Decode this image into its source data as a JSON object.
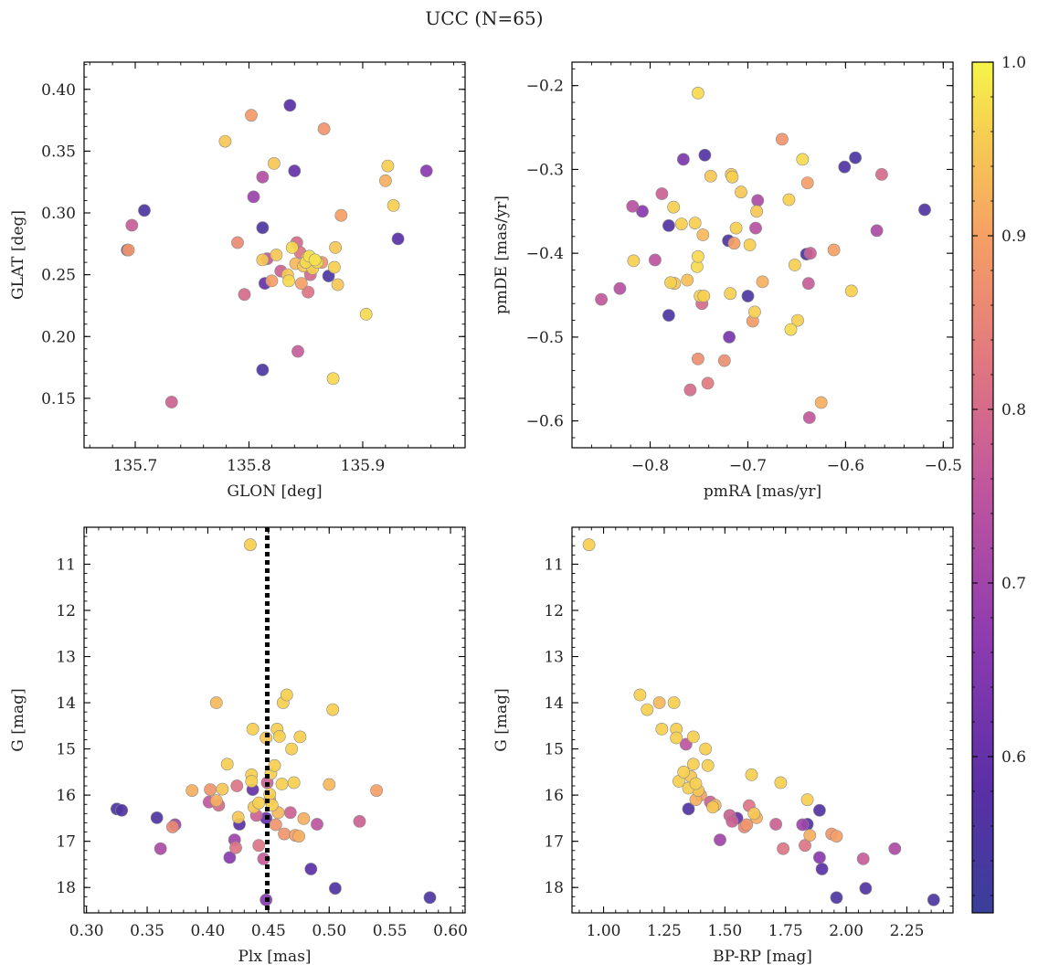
{
  "title": "UCC (N=65)",
  "chart_data": [
    {
      "type": "scatter",
      "xlabel": "GLON [deg]",
      "ylabel": "GLAT [deg]",
      "xlim": [
        135.655,
        135.99
      ],
      "ylim": [
        0.11,
        0.422
      ],
      "xticks": [
        135.7,
        135.8,
        135.9
      ],
      "xticklabels": [
        "135.7",
        "135.8",
        "135.9"
      ],
      "yticks": [
        0.15,
        0.2,
        0.25,
        0.3,
        0.35,
        0.4
      ],
      "yticklabels": [
        "0.15",
        "0.20",
        "0.25",
        "0.30",
        "0.35",
        "0.40"
      ],
      "points": [
        [
          135.693,
          0.27,
          0.6
        ],
        [
          135.694,
          0.27,
          0.89
        ],
        [
          135.697,
          0.29,
          0.77
        ],
        [
          135.708,
          0.302,
          0.55
        ],
        [
          135.732,
          0.147,
          0.78
        ],
        [
          135.779,
          0.358,
          0.95
        ],
        [
          135.79,
          0.276,
          0.86
        ],
        [
          135.796,
          0.234,
          0.8
        ],
        [
          135.802,
          0.379,
          0.89
        ],
        [
          135.804,
          0.313,
          0.69
        ],
        [
          135.812,
          0.329,
          0.73
        ],
        [
          135.812,
          0.288,
          0.55
        ],
        [
          135.812,
          0.262,
          0.95
        ],
        [
          135.814,
          0.243,
          0.6
        ],
        [
          135.816,
          0.263,
          0.76
        ],
        [
          135.812,
          0.173,
          0.55
        ],
        [
          135.82,
          0.245,
          0.9
        ],
        [
          135.822,
          0.34,
          0.95
        ],
        [
          135.824,
          0.266,
          0.95
        ],
        [
          135.828,
          0.253,
          0.78
        ],
        [
          135.834,
          0.25,
          0.95
        ],
        [
          135.835,
          0.245,
          0.97
        ],
        [
          135.836,
          0.387,
          0.58
        ],
        [
          135.838,
          0.272,
          0.97
        ],
        [
          135.84,
          0.334,
          0.6
        ],
        [
          135.841,
          0.259,
          0.93
        ],
        [
          135.842,
          0.276,
          0.8
        ],
        [
          135.843,
          0.188,
          0.77
        ],
        [
          135.845,
          0.268,
          0.82
        ],
        [
          135.846,
          0.243,
          0.9
        ],
        [
          135.848,
          0.257,
          0.95
        ],
        [
          135.85,
          0.26,
          0.97
        ],
        [
          135.851,
          0.264,
          0.92
        ],
        [
          135.852,
          0.236,
          0.82
        ],
        [
          135.853,
          0.265,
          0.98
        ],
        [
          135.854,
          0.25,
          0.8
        ],
        [
          135.856,
          0.255,
          0.96
        ],
        [
          135.858,
          0.262,
          0.98
        ],
        [
          135.86,
          0.26,
          0.97
        ],
        [
          135.864,
          0.26,
          0.88
        ],
        [
          135.866,
          0.368,
          0.88
        ],
        [
          135.87,
          0.249,
          0.55
        ],
        [
          135.874,
          0.166,
          0.97
        ],
        [
          135.875,
          0.256,
          0.96
        ],
        [
          135.876,
          0.272,
          0.95
        ],
        [
          135.878,
          0.242,
          0.95
        ],
        [
          135.881,
          0.298,
          0.9
        ],
        [
          135.903,
          0.218,
          0.97
        ],
        [
          135.92,
          0.326,
          0.92
        ],
        [
          135.922,
          0.338,
          0.96
        ],
        [
          135.927,
          0.306,
          0.96
        ],
        [
          135.931,
          0.279,
          0.58
        ],
        [
          135.956,
          0.334,
          0.66
        ]
      ]
    },
    {
      "type": "scatter",
      "xlabel": "pmRA [mas/yr]",
      "ylabel": "pmDE [mas/yr]",
      "xlim": [
        -0.88,
        -0.49
      ],
      "ylim": [
        -0.632,
        -0.172
      ],
      "xticks": [
        -0.8,
        -0.7,
        -0.6,
        -0.5
      ],
      "xticklabels": [
        "−0.8",
        "−0.7",
        "−0.6",
        "−0.5"
      ],
      "yticks": [
        -0.6,
        -0.5,
        -0.4,
        -0.3,
        -0.2
      ],
      "yticklabels": [
        "−0.6",
        "−0.5",
        "−0.4",
        "−0.3",
        "−0.2"
      ],
      "points": [
        [
          -0.85,
          -0.455,
          0.76
        ],
        [
          -0.831,
          -0.442,
          0.74
        ],
        [
          -0.818,
          -0.344,
          0.74
        ],
        [
          -0.817,
          -0.409,
          0.96
        ],
        [
          -0.808,
          -0.35,
          0.66
        ],
        [
          -0.795,
          -0.408,
          0.75
        ],
        [
          -0.788,
          -0.329,
          0.78
        ],
        [
          -0.781,
          -0.474,
          0.55
        ],
        [
          -0.781,
          -0.367,
          0.57
        ],
        [
          -0.779,
          -0.435,
          0.96
        ],
        [
          -0.776,
          -0.345,
          0.96
        ],
        [
          -0.775,
          -0.436,
          0.95
        ],
        [
          -0.768,
          -0.365,
          0.96
        ],
        [
          -0.766,
          -0.288,
          0.64
        ],
        [
          -0.762,
          -0.432,
          0.94
        ],
        [
          -0.759,
          -0.563,
          0.8
        ],
        [
          -0.754,
          -0.364,
          0.96
        ],
        [
          -0.752,
          -0.416,
          0.97
        ],
        [
          -0.751,
          -0.404,
          0.97
        ],
        [
          -0.751,
          -0.526,
          0.87
        ],
        [
          -0.751,
          -0.209,
          0.97
        ],
        [
          -0.749,
          -0.451,
          0.96
        ],
        [
          -0.747,
          -0.46,
          0.8
        ],
        [
          -0.746,
          -0.378,
          0.93
        ],
        [
          -0.745,
          -0.451,
          0.96
        ],
        [
          -0.744,
          -0.283,
          0.57
        ],
        [
          -0.741,
          -0.555,
          0.83
        ],
        [
          -0.738,
          -0.308,
          0.95
        ],
        [
          -0.724,
          -0.528,
          0.87
        ],
        [
          -0.72,
          -0.385,
          0.56
        ],
        [
          -0.719,
          -0.5,
          0.63
        ],
        [
          -0.718,
          -0.448,
          0.96
        ],
        [
          -0.717,
          -0.306,
          0.95
        ],
        [
          -0.716,
          -0.309,
          0.96
        ],
        [
          -0.714,
          -0.388,
          0.9
        ],
        [
          -0.712,
          -0.37,
          0.96
        ],
        [
          -0.707,
          -0.327,
          0.95
        ],
        [
          -0.7,
          -0.451,
          0.55
        ],
        [
          -0.698,
          -0.39,
          0.96
        ],
        [
          -0.695,
          -0.481,
          0.89
        ],
        [
          -0.693,
          -0.47,
          0.96
        ],
        [
          -0.692,
          -0.37,
          0.74
        ],
        [
          -0.691,
          -0.35,
          0.95
        ],
        [
          -0.69,
          -0.337,
          0.72
        ],
        [
          -0.685,
          -0.434,
          0.92
        ],
        [
          -0.665,
          -0.264,
          0.88
        ],
        [
          -0.658,
          -0.336,
          0.96
        ],
        [
          -0.656,
          -0.491,
          0.97
        ],
        [
          -0.652,
          -0.414,
          0.96
        ],
        [
          -0.649,
          -0.48,
          0.96
        ],
        [
          -0.644,
          -0.288,
          0.97
        ],
        [
          -0.64,
          -0.401,
          0.55
        ],
        [
          -0.639,
          -0.316,
          0.9
        ],
        [
          -0.638,
          -0.436,
          0.77
        ],
        [
          -0.637,
          -0.596,
          0.76
        ],
        [
          -0.636,
          -0.4,
          0.78
        ],
        [
          -0.625,
          -0.578,
          0.92
        ],
        [
          -0.612,
          -0.396,
          0.9
        ],
        [
          -0.601,
          -0.297,
          0.56
        ],
        [
          -0.594,
          -0.445,
          0.96
        ],
        [
          -0.59,
          -0.286,
          0.55
        ],
        [
          -0.568,
          -0.373,
          0.72
        ],
        [
          -0.563,
          -0.306,
          0.8
        ],
        [
          -0.519,
          -0.348,
          0.56
        ]
      ]
    },
    {
      "type": "scatter",
      "xlabel": "Plx [mas]",
      "ylabel": "G [mag]",
      "xlim": [
        0.298,
        0.612
      ],
      "ylim": [
        18.55,
        10.2
      ],
      "y_inverted": true,
      "vline": 0.449,
      "xticks": [
        0.3,
        0.35,
        0.4,
        0.45,
        0.5,
        0.55,
        0.6
      ],
      "xticklabels": [
        "0.30",
        "0.35",
        "0.40",
        "0.45",
        "0.50",
        "0.55",
        "0.60"
      ],
      "yticks": [
        11,
        12,
        13,
        14,
        15,
        16,
        17,
        18
      ],
      "yticklabels": [
        "11",
        "12",
        "13",
        "14",
        "15",
        "16",
        "17",
        "18"
      ],
      "points": [
        [
          0.325,
          16.3,
          0.55
        ],
        [
          0.329,
          16.33,
          0.56
        ],
        [
          0.358,
          16.49,
          0.56
        ],
        [
          0.361,
          17.16,
          0.72
        ],
        [
          0.371,
          16.69,
          0.86
        ],
        [
          0.373,
          16.64,
          0.7
        ],
        [
          0.387,
          15.9,
          0.92
        ],
        [
          0.401,
          16.15,
          0.76
        ],
        [
          0.402,
          15.88,
          0.88
        ],
        [
          0.407,
          14.0,
          0.93
        ],
        [
          0.407,
          16.12,
          0.92
        ],
        [
          0.409,
          16.22,
          0.8
        ],
        [
          0.412,
          15.87,
          0.95
        ],
        [
          0.416,
          15.33,
          0.96
        ],
        [
          0.418,
          17.35,
          0.66
        ],
        [
          0.422,
          16.97,
          0.7
        ],
        [
          0.423,
          17.14,
          0.82
        ],
        [
          0.424,
          15.8,
          0.82
        ],
        [
          0.425,
          16.48,
          0.95
        ],
        [
          0.426,
          16.63,
          0.58
        ],
        [
          0.435,
          10.58,
          0.96
        ],
        [
          0.436,
          15.56,
          0.96
        ],
        [
          0.436,
          15.7,
          0.96
        ],
        [
          0.437,
          14.57,
          0.96
        ],
        [
          0.437,
          15.88,
          0.6
        ],
        [
          0.438,
          16.26,
          0.95
        ],
        [
          0.44,
          16.44,
          0.78
        ],
        [
          0.442,
          16.17,
          0.96
        ],
        [
          0.442,
          17.09,
          0.82
        ],
        [
          0.446,
          17.38,
          0.77
        ],
        [
          0.448,
          16.5,
          0.6
        ],
        [
          0.448,
          18.27,
          0.66
        ],
        [
          0.448,
          14.76,
          0.95
        ],
        [
          0.449,
          15.73,
          0.78
        ],
        [
          0.451,
          15.98,
          0.96
        ],
        [
          0.451,
          16.1,
          0.9
        ],
        [
          0.452,
          15.53,
          0.96
        ],
        [
          0.453,
          16.22,
          0.96
        ],
        [
          0.455,
          15.36,
          0.96
        ],
        [
          0.456,
          16.64,
          0.88
        ],
        [
          0.457,
          14.57,
          0.96
        ],
        [
          0.458,
          16.38,
          0.93
        ],
        [
          0.459,
          14.73,
          0.96
        ],
        [
          0.461,
          15.76,
          0.96
        ],
        [
          0.462,
          14.0,
          0.96
        ],
        [
          0.463,
          16.84,
          0.88
        ],
        [
          0.465,
          13.83,
          0.96
        ],
        [
          0.468,
          16.38,
          0.78
        ],
        [
          0.469,
          15.0,
          0.96
        ],
        [
          0.471,
          15.73,
          0.96
        ],
        [
          0.472,
          16.87,
          0.9
        ],
        [
          0.475,
          16.89,
          0.92
        ],
        [
          0.476,
          14.74,
          0.96
        ],
        [
          0.479,
          16.51,
          0.92
        ],
        [
          0.485,
          17.6,
          0.58
        ],
        [
          0.49,
          16.63,
          0.75
        ],
        [
          0.5,
          15.77,
          0.93
        ],
        [
          0.503,
          14.15,
          0.96
        ],
        [
          0.505,
          18.02,
          0.56
        ],
        [
          0.525,
          16.57,
          0.78
        ],
        [
          0.539,
          15.9,
          0.9
        ],
        [
          0.583,
          18.22,
          0.55
        ]
      ]
    },
    {
      "type": "scatter",
      "xlabel": "BP-RP [mag]",
      "ylabel": "G [mag]",
      "xlim": [
        0.87,
        2.44
      ],
      "ylim": [
        18.55,
        10.2
      ],
      "y_inverted": true,
      "xticks": [
        1.0,
        1.25,
        1.5,
        1.75,
        2.0,
        2.25
      ],
      "xticklabels": [
        "1.00",
        "1.25",
        "1.50",
        "1.75",
        "2.00",
        "2.25"
      ],
      "yticks": [
        11,
        12,
        13,
        14,
        15,
        16,
        17,
        18
      ],
      "yticklabels": [
        "11",
        "12",
        "13",
        "14",
        "15",
        "16",
        "17",
        "18"
      ],
      "points": [
        [
          0.94,
          10.58,
          0.96
        ],
        [
          1.15,
          13.83,
          0.96
        ],
        [
          1.18,
          14.15,
          0.96
        ],
        [
          1.23,
          14.0,
          0.93
        ],
        [
          1.24,
          14.57,
          0.96
        ],
        [
          1.29,
          14.0,
          0.96
        ],
        [
          1.3,
          14.57,
          0.96
        ],
        [
          1.3,
          14.76,
          0.96
        ],
        [
          1.31,
          15.7,
          0.96
        ],
        [
          1.33,
          15.5,
          0.96
        ],
        [
          1.34,
          14.9,
          0.75
        ],
        [
          1.35,
          16.3,
          0.56
        ],
        [
          1.35,
          15.85,
          0.96
        ],
        [
          1.36,
          15.6,
          0.95
        ],
        [
          1.37,
          14.74,
          0.96
        ],
        [
          1.37,
          15.33,
          0.96
        ],
        [
          1.38,
          16.1,
          0.92
        ],
        [
          1.38,
          15.75,
          0.96
        ],
        [
          1.39,
          15.9,
          0.95
        ],
        [
          1.4,
          16.0,
          0.9
        ],
        [
          1.42,
          15.0,
          0.96
        ],
        [
          1.43,
          15.36,
          0.96
        ],
        [
          1.44,
          16.15,
          0.78
        ],
        [
          1.45,
          16.26,
          0.95
        ],
        [
          1.46,
          16.22,
          0.93
        ],
        [
          1.48,
          16.97,
          0.7
        ],
        [
          1.52,
          16.44,
          0.78
        ],
        [
          1.53,
          16.57,
          0.78
        ],
        [
          1.55,
          16.5,
          0.6
        ],
        [
          1.58,
          16.69,
          0.86
        ],
        [
          1.59,
          16.64,
          0.88
        ],
        [
          1.6,
          16.23,
          0.82
        ],
        [
          1.61,
          15.56,
          0.96
        ],
        [
          1.62,
          16.4,
          0.95
        ],
        [
          1.63,
          16.49,
          0.92
        ],
        [
          1.71,
          16.63,
          0.78
        ],
        [
          1.73,
          15.73,
          0.96
        ],
        [
          1.74,
          17.16,
          0.82
        ],
        [
          1.82,
          16.64,
          0.7
        ],
        [
          1.83,
          17.09,
          0.82
        ],
        [
          1.84,
          16.1,
          0.96
        ],
        [
          1.84,
          16.63,
          0.56
        ],
        [
          1.85,
          16.87,
          0.92
        ],
        [
          1.89,
          16.33,
          0.56
        ],
        [
          1.89,
          17.35,
          0.66
        ],
        [
          1.9,
          17.6,
          0.58
        ],
        [
          1.94,
          16.84,
          0.88
        ],
        [
          1.96,
          16.89,
          0.9
        ],
        [
          1.96,
          18.22,
          0.55
        ],
        [
          2.07,
          17.38,
          0.77
        ],
        [
          2.08,
          18.02,
          0.56
        ],
        [
          2.2,
          17.16,
          0.72
        ],
        [
          2.36,
          18.27,
          0.55
        ]
      ]
    }
  ],
  "colorbar": {
    "range": [
      0.51,
      1.0
    ],
    "ticks": [
      0.6,
      0.7,
      0.8,
      0.9,
      1.0
    ],
    "ticklabels": [
      "0.6",
      "0.7",
      "0.8",
      "0.9",
      "1.0"
    ],
    "colormap": "plasma"
  }
}
